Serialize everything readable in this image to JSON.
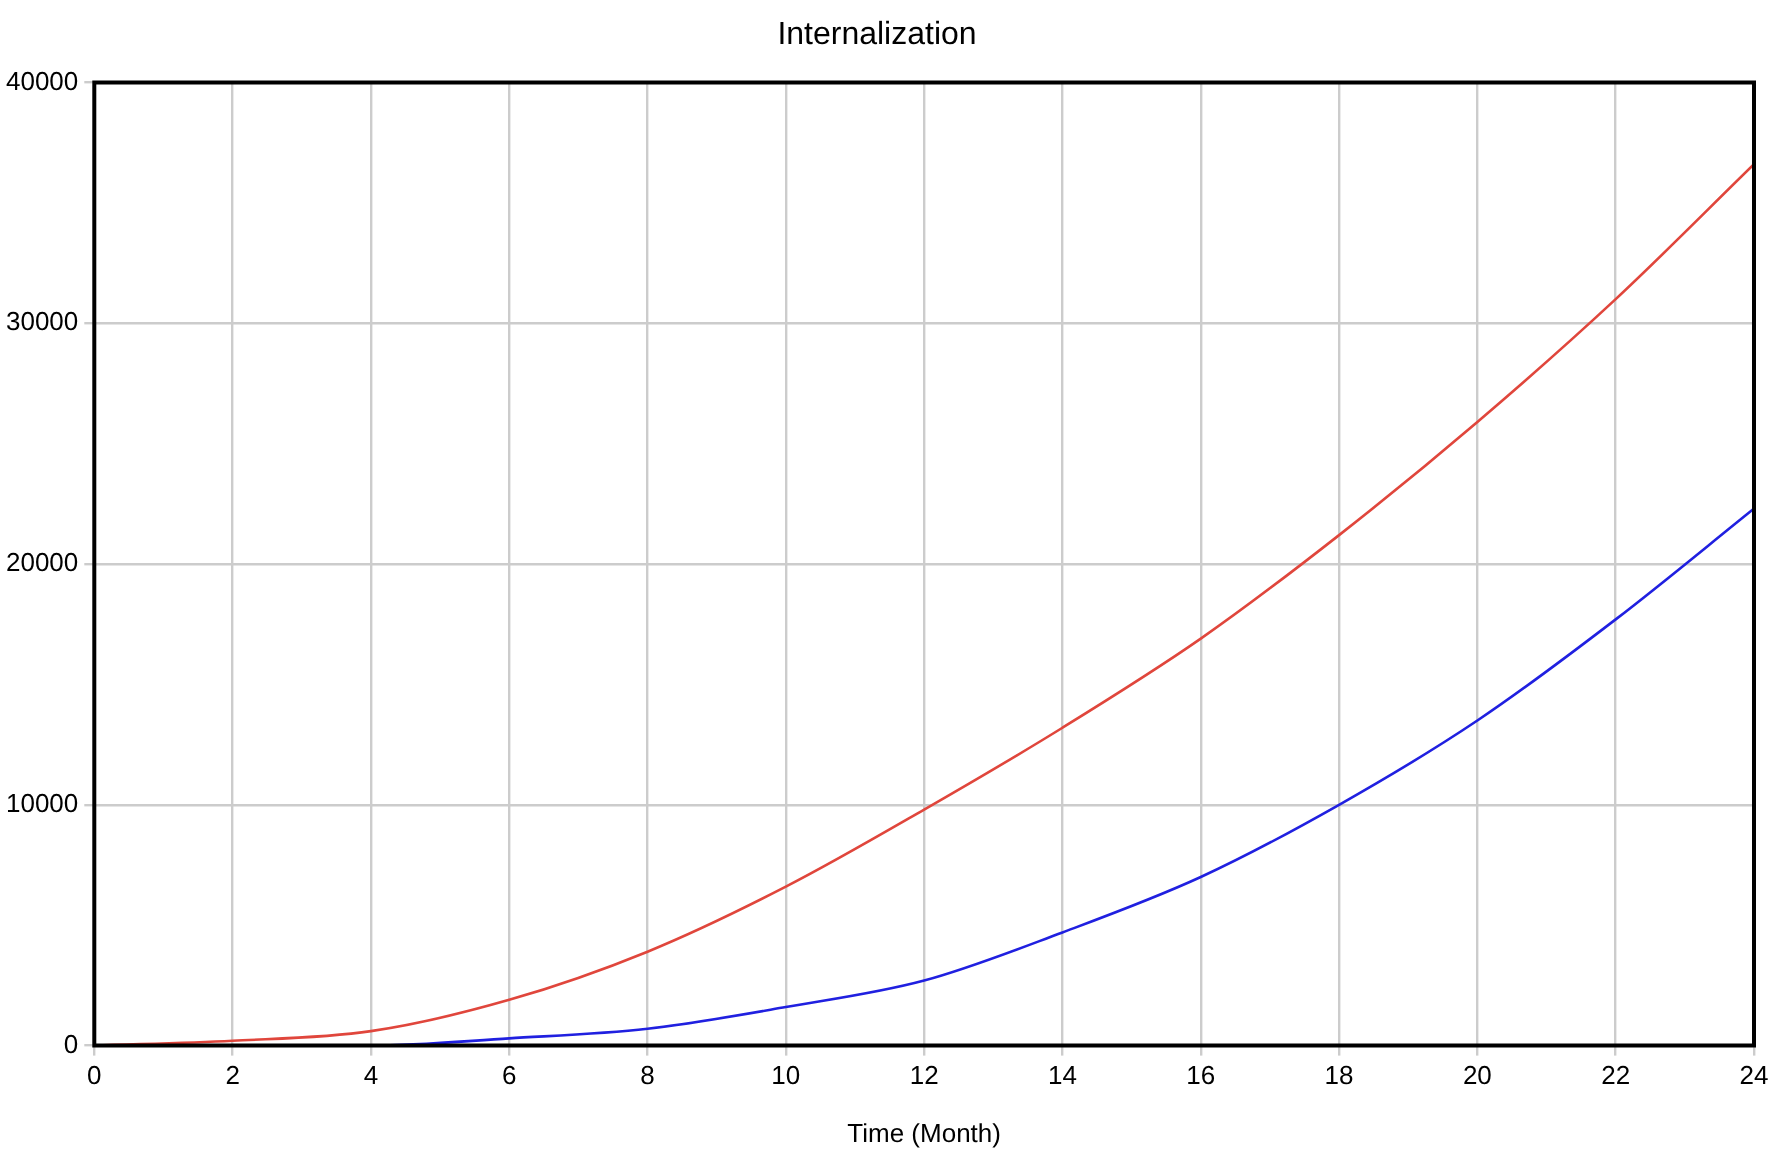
{
  "chart_data": {
    "type": "line",
    "title": "Internalization",
    "xlabel": "Time (Month)",
    "x": [
      0,
      2,
      4,
      6,
      8,
      10,
      12,
      14,
      16,
      18,
      20,
      22,
      24
    ],
    "series": [
      {
        "color": "#e0463c",
        "values": [
          0,
          200,
          600,
          1900,
          3900,
          6600,
          9800,
          13200,
          16900,
          21200,
          25900,
          31000,
          36600
        ]
      },
      {
        "color": "#2020e0",
        "values": [
          0,
          0,
          0,
          300,
          700,
          1600,
          2700,
          4700,
          7000,
          10000,
          13500,
          17700,
          22300
        ]
      }
    ],
    "xlim": [
      0,
      24
    ],
    "xticks": [
      0,
      2,
      4,
      6,
      8,
      10,
      12,
      14,
      16,
      18,
      20,
      22,
      24
    ],
    "ylim": [
      0,
      40000
    ],
    "yticks": [
      0,
      10000,
      20000,
      30000,
      40000
    ],
    "grid": true,
    "legend": false,
    "marker": "none",
    "line_style": "solid"
  }
}
